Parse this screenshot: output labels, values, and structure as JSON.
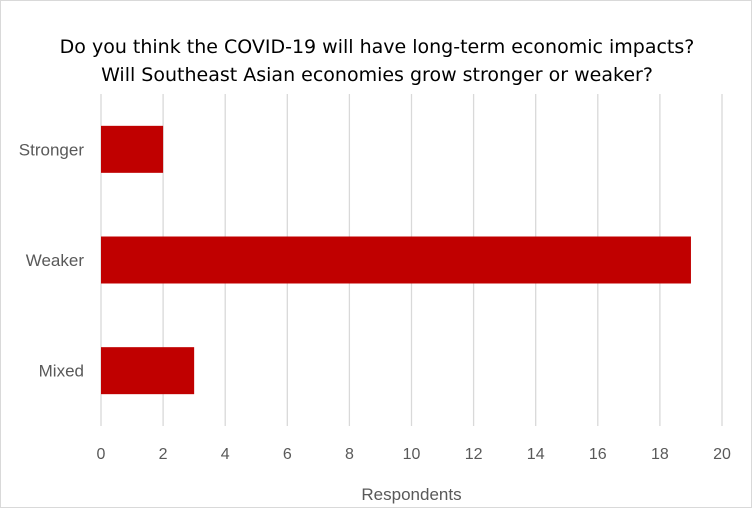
{
  "chart_data": {
    "type": "bar",
    "orientation": "horizontal",
    "title": [
      "Do you think the COVID-19 will have long-term economic impacts?",
      "Will Southeast Asian economies grow stronger or weaker?"
    ],
    "categories": [
      "Stronger",
      "Weaker",
      "Mixed"
    ],
    "values": [
      2,
      19,
      3
    ],
    "xlabel": "Respondents",
    "ylabel": "",
    "xlim": [
      0,
      20
    ],
    "xticks": [
      0,
      2,
      4,
      6,
      8,
      10,
      12,
      14,
      16,
      18,
      20
    ],
    "grid": "vertical",
    "legend": "none",
    "bar_color": "#c00000",
    "grid_color": "#d9d9d9",
    "text_color": "#595959"
  }
}
